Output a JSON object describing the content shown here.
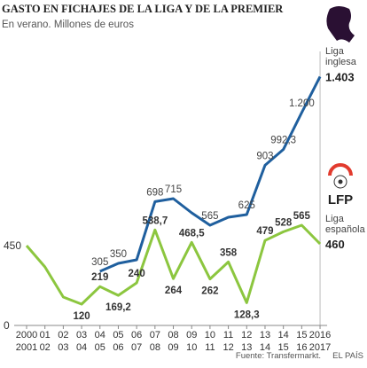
{
  "chart_data": {
    "type": "line",
    "title": "GASTO EN FICHAJES DE LA LIGA Y DE LA PREMIER",
    "subtitle": "En verano. Millones de euros",
    "categories": [
      [
        "2000",
        "2001"
      ],
      [
        "01",
        "02"
      ],
      [
        "02",
        "03"
      ],
      [
        "03",
        "04"
      ],
      [
        "04",
        "05"
      ],
      [
        "05",
        "06"
      ],
      [
        "06",
        "07"
      ],
      [
        "07",
        "08"
      ],
      [
        "08",
        "09"
      ],
      [
        "09",
        "10"
      ],
      [
        "10",
        "11"
      ],
      [
        "11",
        "12"
      ],
      [
        "12",
        "13"
      ],
      [
        "13",
        "14"
      ],
      [
        "14",
        "15"
      ],
      [
        "15",
        "16"
      ],
      [
        "2016",
        "2017"
      ]
    ],
    "ylim": [
      0,
      1500
    ],
    "yticks": [
      0,
      450
    ],
    "series": [
      {
        "name": "Liga inglesa",
        "color": "#1f5f9e",
        "values": [
          null,
          null,
          null,
          null,
          305,
          350,
          370,
          698,
          715,
          635,
          565,
          610,
          625,
          903,
          992.3,
          1200,
          1403
        ],
        "value_labels": [
          null,
          null,
          null,
          null,
          "305",
          "350",
          null,
          "698",
          "715",
          null,
          "565",
          null,
          "625",
          "903",
          "992,3",
          "1.200",
          "1.403"
        ]
      },
      {
        "name": "Liga española",
        "color": "#8cc63f",
        "values": [
          450,
          330,
          160,
          120,
          219,
          169.2,
          240,
          538.7,
          264,
          468.5,
          262,
          358,
          128.3,
          479,
          528,
          565,
          460
        ],
        "value_labels": [
          null,
          null,
          null,
          "120",
          "219",
          "169,2",
          "240",
          "538,7",
          "264",
          "468,5",
          "262",
          "358",
          "128,3",
          "479",
          "528",
          "565",
          "460"
        ]
      }
    ],
    "logo_text": "LFP",
    "source": "Fuente: Transfermarkt.",
    "publisher": "EL PAÍS"
  }
}
